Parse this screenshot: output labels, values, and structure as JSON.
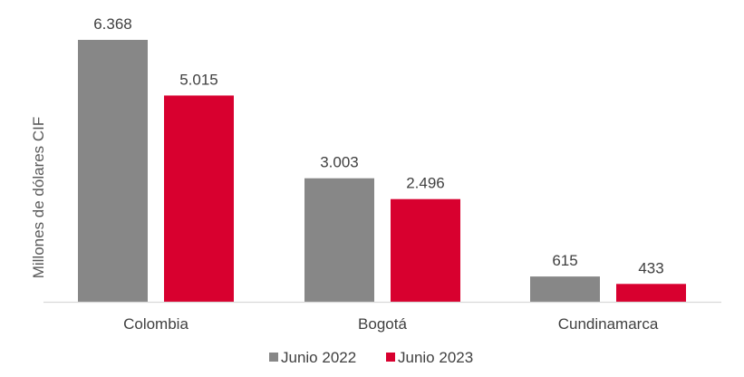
{
  "chart_data": {
    "type": "bar",
    "title": "",
    "xlabel": "",
    "ylabel": "Millones de dólares CIF",
    "categories": [
      "Colombia",
      "Bogotá",
      "Cundinamarca"
    ],
    "series": [
      {
        "name": "Junio 2022",
        "color": "#878787",
        "values": [
          6368,
          3003,
          615
        ],
        "labels": [
          "6.368",
          "3.003",
          "615"
        ]
      },
      {
        "name": "Junio 2023",
        "color": "#d8002f",
        "values": [
          5015,
          2496,
          433
        ],
        "labels": [
          "5.015",
          "2.496",
          "433"
        ]
      }
    ],
    "ylim": [
      0,
      7000
    ],
    "grid": false,
    "legend_position": "bottom",
    "axis_color": "#d9d9d9"
  }
}
